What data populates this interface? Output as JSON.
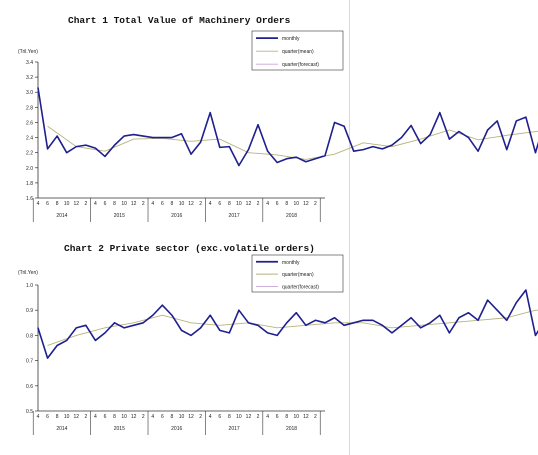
{
  "colors": {
    "monthly": "#1f1f8f",
    "quarter_mean": "#b8b27a",
    "quarter_forecast": "#c9a3d6"
  },
  "chart_data": [
    {
      "type": "line",
      "title": "Chart 1 Total Value of Machinery Orders",
      "ylabel": "(Tril.Yen)",
      "ylim": [
        1.6,
        3.4
      ],
      "yticks": [
        "1.6",
        "1.8",
        "2.0",
        "2.2",
        "2.4",
        "2.6",
        "2.8",
        "3.0",
        "3.2",
        "3.4"
      ],
      "xtick_labels": [
        "4",
        "6",
        "8",
        "10",
        "12",
        "2",
        "4",
        "6",
        "8",
        "10",
        "12",
        "2",
        "4",
        "6",
        "8",
        "10",
        "12",
        "2",
        "4",
        "6",
        "8",
        "10",
        "12",
        "2",
        "4",
        "6",
        "8",
        "10",
        "12",
        "2"
      ],
      "years": [
        "2014",
        "2015",
        "2016",
        "2017",
        "2018"
      ],
      "grid": false,
      "legend": "top-right",
      "legend_labels": [
        "monthly",
        "quarter(mean)",
        "quarter(forecast)"
      ],
      "monthly": [
        3.06,
        2.25,
        2.42,
        2.2,
        2.28,
        2.3,
        2.26,
        2.15,
        2.3,
        2.42,
        2.44,
        2.42,
        2.4,
        2.4,
        2.4,
        2.45,
        2.18,
        2.34,
        2.73,
        2.27,
        2.28,
        2.03,
        2.24,
        2.57,
        2.22,
        2.07,
        2.12,
        2.14,
        2.08,
        2.12,
        2.16,
        2.6,
        2.55,
        2.22,
        2.24,
        2.28,
        2.25,
        2.3,
        2.4,
        2.56,
        2.32,
        2.44,
        2.73,
        2.38,
        2.48,
        2.4,
        2.22,
        2.5,
        2.62,
        2.24,
        2.62,
        2.67,
        2.2,
        2.62,
        2.86
      ],
      "quarter_mean": [
        2.55,
        2.28,
        2.22,
        2.38,
        2.39,
        2.35,
        2.38,
        2.2,
        2.17,
        2.11,
        2.18,
        2.33,
        2.28,
        2.38,
        2.5,
        2.37,
        2.43,
        2.48,
        2.52
      ],
      "quarter_forecast": [
        2.48,
        2.56
      ]
    },
    {
      "type": "line",
      "title": "Chart 2 Private sector (exc.volatile orders)",
      "ylabel": "(Tril.Yen)",
      "ylim": [
        0.5,
        1.0
      ],
      "yticks": [
        "0.5",
        "0.6",
        "0.7",
        "0.8",
        "0.9",
        "1.0"
      ],
      "xtick_labels": [
        "4",
        "6",
        "8",
        "10",
        "12",
        "2",
        "4",
        "6",
        "8",
        "10",
        "12",
        "2",
        "4",
        "6",
        "8",
        "10",
        "12",
        "2",
        "4",
        "6",
        "8",
        "10",
        "12",
        "2",
        "4",
        "6",
        "8",
        "10",
        "12",
        "2"
      ],
      "years": [
        "2014",
        "2015",
        "2016",
        "2017",
        "2018"
      ],
      "grid": false,
      "legend": "top-right",
      "legend_labels": [
        "monthly",
        "quarter(mean)",
        "quarter(forecast)"
      ],
      "monthly": [
        0.83,
        0.71,
        0.76,
        0.78,
        0.83,
        0.84,
        0.78,
        0.81,
        0.85,
        0.83,
        0.84,
        0.85,
        0.88,
        0.92,
        0.88,
        0.82,
        0.8,
        0.83,
        0.88,
        0.82,
        0.81,
        0.9,
        0.85,
        0.84,
        0.81,
        0.8,
        0.85,
        0.89,
        0.84,
        0.86,
        0.85,
        0.87,
        0.84,
        0.85,
        0.86,
        0.86,
        0.84,
        0.81,
        0.84,
        0.87,
        0.83,
        0.85,
        0.88,
        0.81,
        0.87,
        0.89,
        0.86,
        0.94,
        0.9,
        0.86,
        0.93,
        0.98,
        0.8,
        0.86,
        0.86
      ],
      "quarter_mean": [
        0.76,
        0.8,
        0.83,
        0.85,
        0.88,
        0.85,
        0.84,
        0.85,
        0.83,
        0.84,
        0.85,
        0.85,
        0.83,
        0.84,
        0.85,
        0.86,
        0.87,
        0.9,
        0.9
      ],
      "quarter_forecast": [
        0.91,
        0.93
      ]
    }
  ]
}
